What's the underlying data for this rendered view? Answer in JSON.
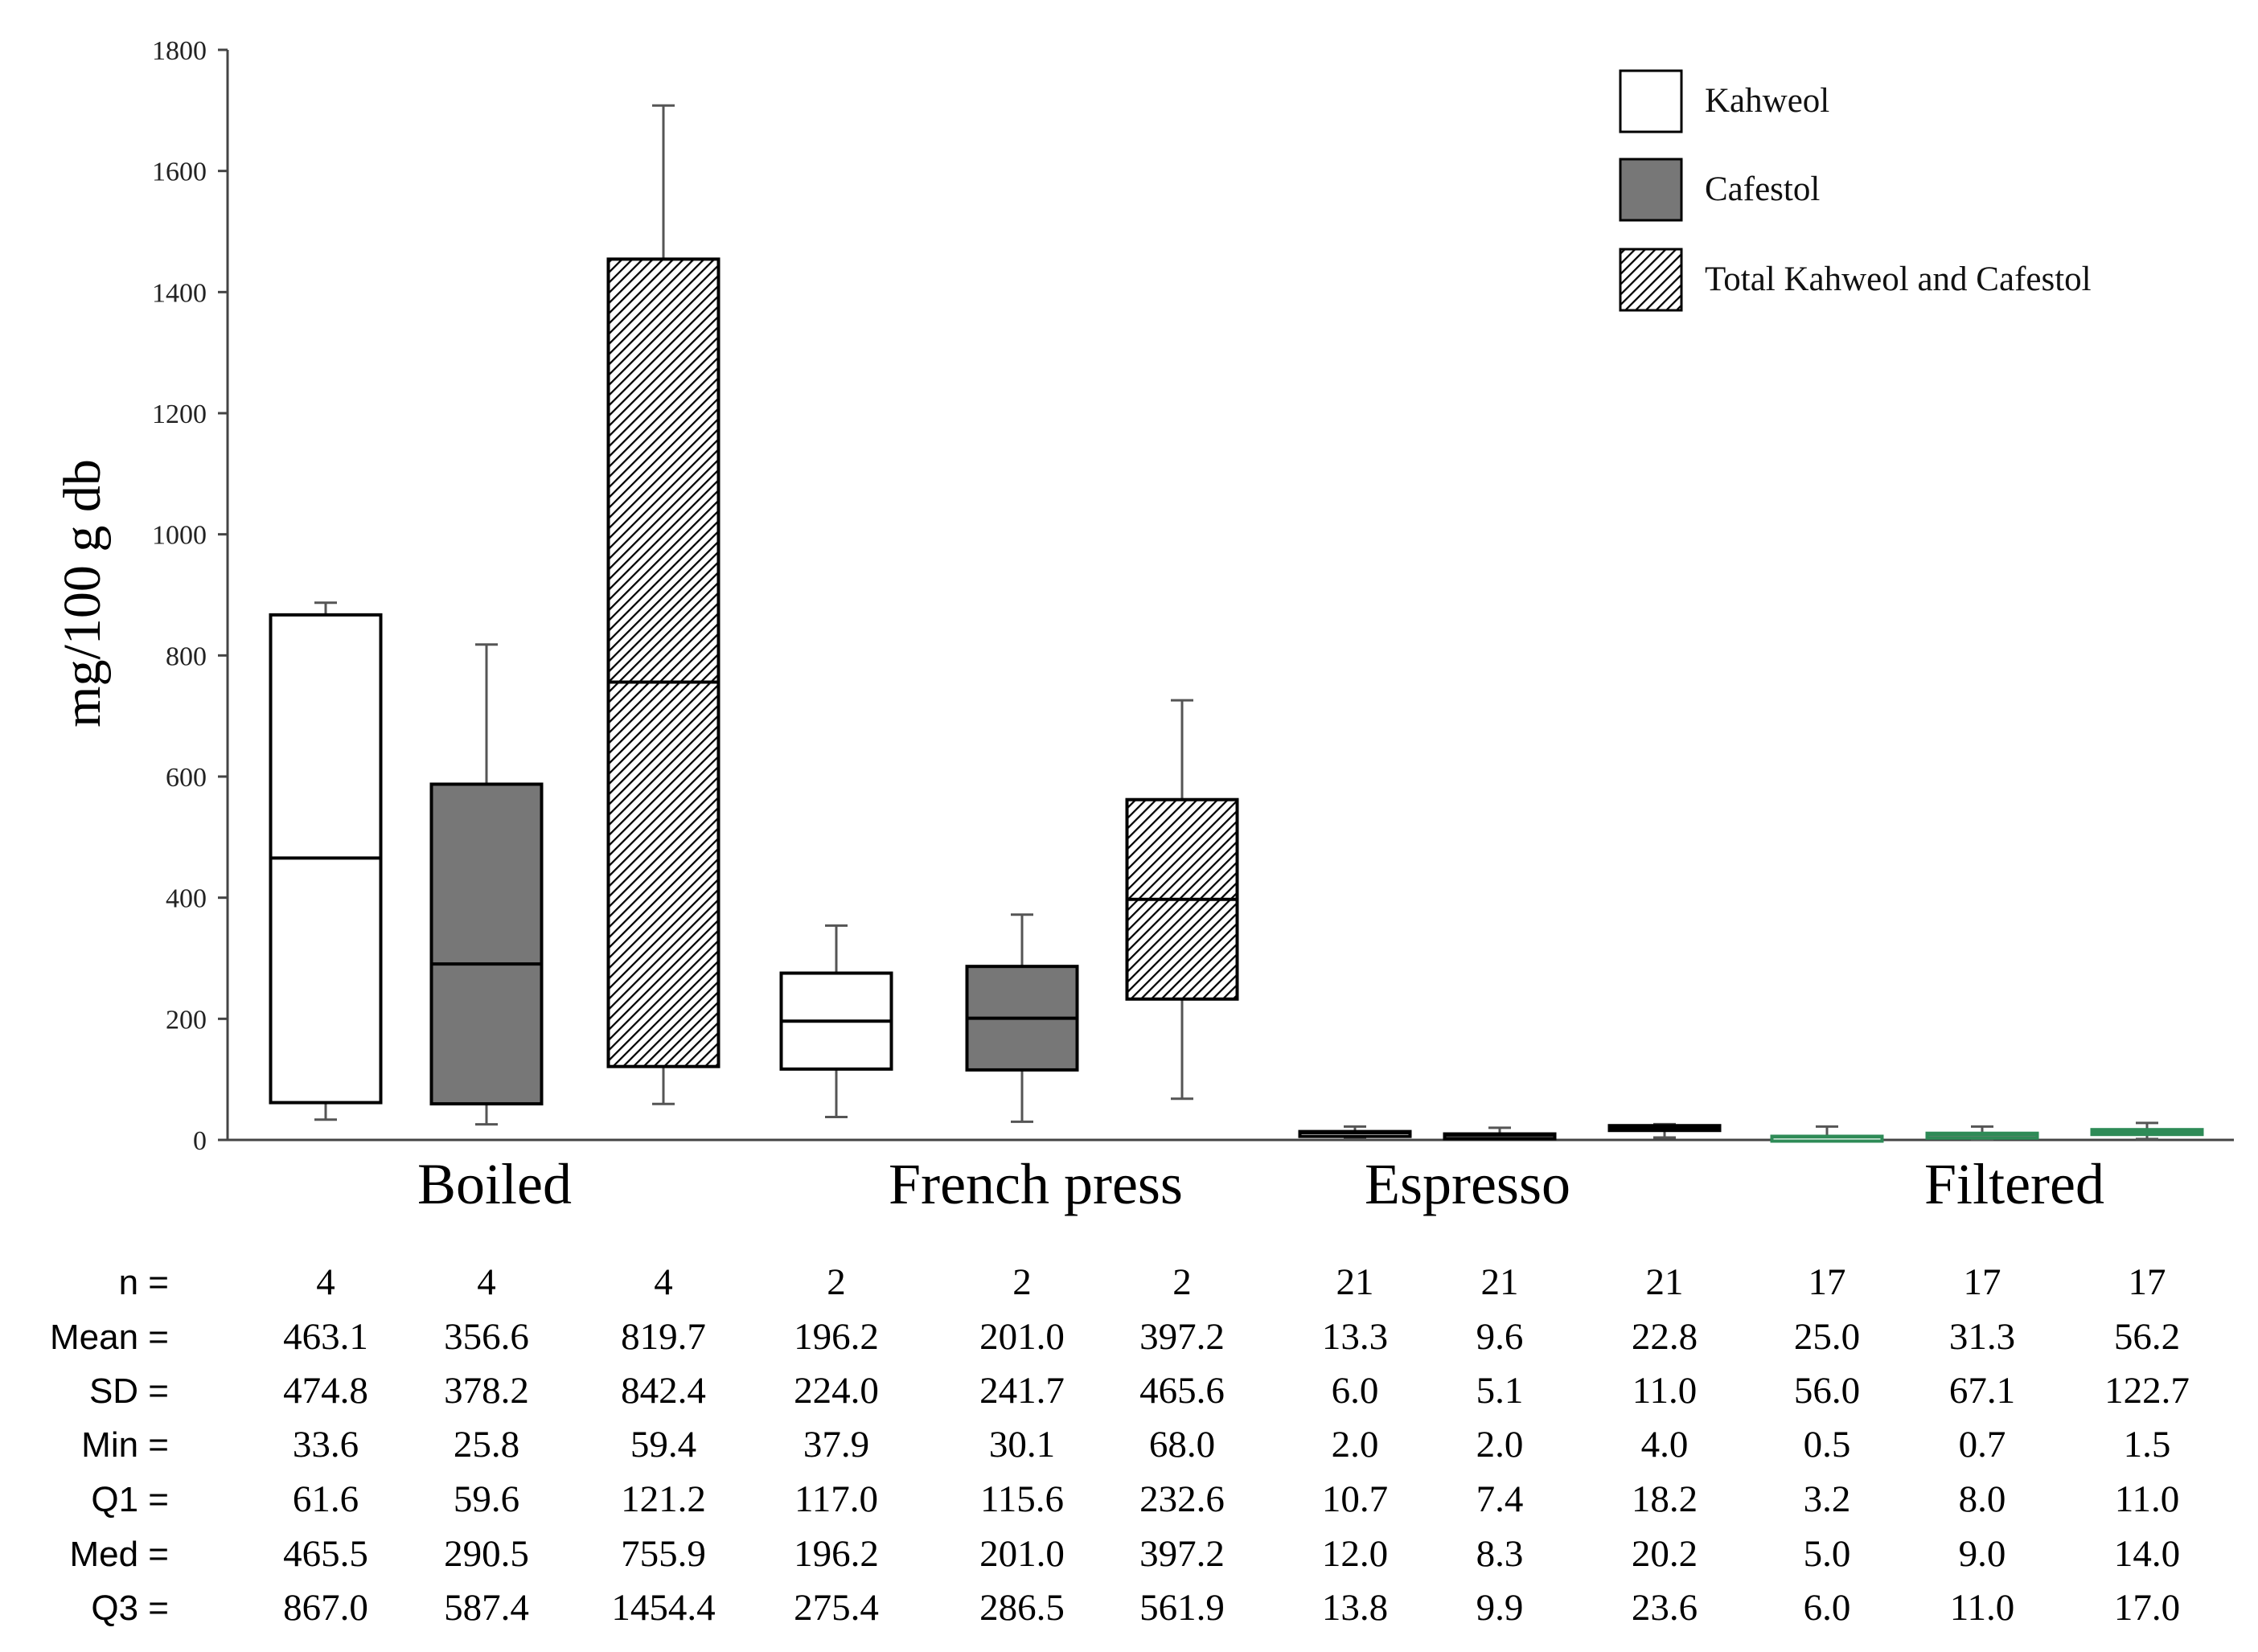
{
  "chart_data": {
    "type": "box",
    "ylabel": "mg/100 g db",
    "ylim": [
      0,
      1800
    ],
    "yticks": [
      0,
      200,
      400,
      600,
      800,
      1000,
      1200,
      1400,
      1600,
      1800
    ],
    "groups": [
      "Boiled",
      "French press",
      "Espresso",
      "Filtered"
    ],
    "legend": [
      {
        "name": "Kahweol",
        "fill": "white"
      },
      {
        "name": "Cafestol",
        "fill": "gray"
      },
      {
        "name": "Total Kahweol and Cafestol",
        "fill": "hatched"
      }
    ],
    "colors": {
      "cafestol": "#777777",
      "filtered_line": "#2e8b57",
      "axis": "#444444"
    },
    "boxes": [
      {
        "group": "Boiled",
        "series": "Kahweol",
        "min": 33.6,
        "q1": 61.6,
        "med": 465.5,
        "q3": 867.0,
        "whisker_hi": 887
      },
      {
        "group": "Boiled",
        "series": "Cafestol",
        "min": 25.8,
        "q1": 59.6,
        "med": 290.5,
        "q3": 587.4,
        "whisker_hi": 818
      },
      {
        "group": "Boiled",
        "series": "Total",
        "min": 59.4,
        "q1": 121.2,
        "med": 755.9,
        "q3": 1454.4,
        "whisker_hi": 1708
      },
      {
        "group": "French press",
        "series": "Kahweol",
        "min": 37.9,
        "q1": 117.0,
        "med": 196.2,
        "q3": 275.4,
        "whisker_hi": 354
      },
      {
        "group": "French press",
        "series": "Cafestol",
        "min": 30.1,
        "q1": 115.6,
        "med": 201.0,
        "q3": 286.5,
        "whisker_hi": 372
      },
      {
        "group": "French press",
        "series": "Total",
        "min": 68.0,
        "q1": 232.6,
        "med": 397.2,
        "q3": 561.9,
        "whisker_hi": 726
      },
      {
        "group": "Espresso",
        "series": "Kahweol",
        "min": 2.0,
        "q1": 10.7,
        "med": 12.0,
        "q3": 13.8,
        "whisker_hi": 22
      },
      {
        "group": "Espresso",
        "series": "Cafestol",
        "min": 2.0,
        "q1": 7.4,
        "med": 8.3,
        "q3": 9.9,
        "whisker_hi": 20
      },
      {
        "group": "Espresso",
        "series": "Total",
        "min": 4.0,
        "q1": 18.2,
        "med": 20.2,
        "q3": 23.6,
        "whisker_hi": 26
      },
      {
        "group": "Filtered",
        "series": "Kahweol",
        "min": 0.5,
        "q1": 3.2,
        "med": 5.0,
        "q3": 6.0,
        "whisker_hi": 22
      },
      {
        "group": "Filtered",
        "series": "Cafestol",
        "min": 0.7,
        "q1": 8.0,
        "med": 9.0,
        "q3": 11.0,
        "whisker_hi": 22
      },
      {
        "group": "Filtered",
        "series": "Total",
        "min": 1.5,
        "q1": 11.0,
        "med": 14.0,
        "q3": 17.0,
        "whisker_hi": 28
      }
    ],
    "table": {
      "rows": [
        {
          "label": "n =",
          "values": [
            "4",
            "4",
            "4",
            "2",
            "2",
            "2",
            "21",
            "21",
            "21",
            "17",
            "17",
            "17"
          ]
        },
        {
          "label": "Mean =",
          "values": [
            "463.1",
            "356.6",
            "819.7",
            "196.2",
            "201.0",
            "397.2",
            "13.3",
            "9.6",
            "22.8",
            "25.0",
            "31.3",
            "56.2"
          ]
        },
        {
          "label": "SD =",
          "values": [
            "474.8",
            "378.2",
            "842.4",
            "224.0",
            "241.7",
            "465.6",
            "6.0",
            "5.1",
            "11.0",
            "56.0",
            "67.1",
            "122.7"
          ]
        },
        {
          "label": "Min =",
          "values": [
            "33.6",
            "25.8",
            "59.4",
            "37.9",
            "30.1",
            "68.0",
            "2.0",
            "2.0",
            "4.0",
            "0.5",
            "0.7",
            "1.5"
          ]
        },
        {
          "label": "Q1 =",
          "values": [
            "61.6",
            "59.6",
            "121.2",
            "117.0",
            "115.6",
            "232.6",
            "10.7",
            "7.4",
            "18.2",
            "3.2",
            "8.0",
            "11.0"
          ]
        },
        {
          "label": "Med =",
          "values": [
            "465.5",
            "290.5",
            "755.9",
            "196.2",
            "201.0",
            "397.2",
            "12.0",
            "8.3",
            "20.2",
            "5.0",
            "9.0",
            "14.0"
          ]
        },
        {
          "label": "Q3 =",
          "values": [
            "867.0",
            "587.4",
            "1454.4",
            "275.4",
            "286.5",
            "561.9",
            "13.8",
            "9.9",
            "23.6",
            "6.0",
            "11.0",
            "17.0"
          ]
        }
      ]
    }
  }
}
